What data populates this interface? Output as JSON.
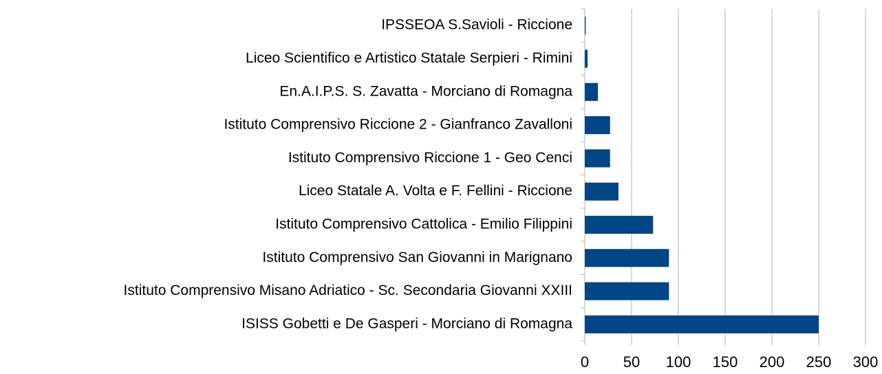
{
  "chart_data": {
    "type": "barh",
    "categories": [
      "IPSSEOA S.Savioli - Riccione",
      "Liceo Scientifico e Artistico Statale Serpieri - Rimini",
      "En.A.I.P.S. S. Zavatta - Morciano di Romagna",
      "Istituto Comprensivo Riccione 2 - Gianfranco Zavalloni",
      "Istituto Comprensivo Riccione 1 - Geo Cenci",
      "Liceo Statale A. Volta e F. Fellini - Riccione",
      "Istituto Comprensivo Cattolica - Emilio Filippini",
      "Istituto Comprensivo San Giovanni in Marignano",
      "Istituto Comprensivo Misano Adriatico - Sc. Secondaria Giovanni XXIII",
      "ISISS Gobetti e De Gasperi - Morciano di Romagna"
    ],
    "values": [
      1,
      3,
      14,
      27,
      27,
      36,
      73,
      90,
      90,
      250
    ],
    "color": "#004586",
    "xlim": [
      0,
      300
    ],
    "xticks": [
      0,
      50,
      100,
      150,
      200,
      250,
      300
    ],
    "grid": true
  }
}
